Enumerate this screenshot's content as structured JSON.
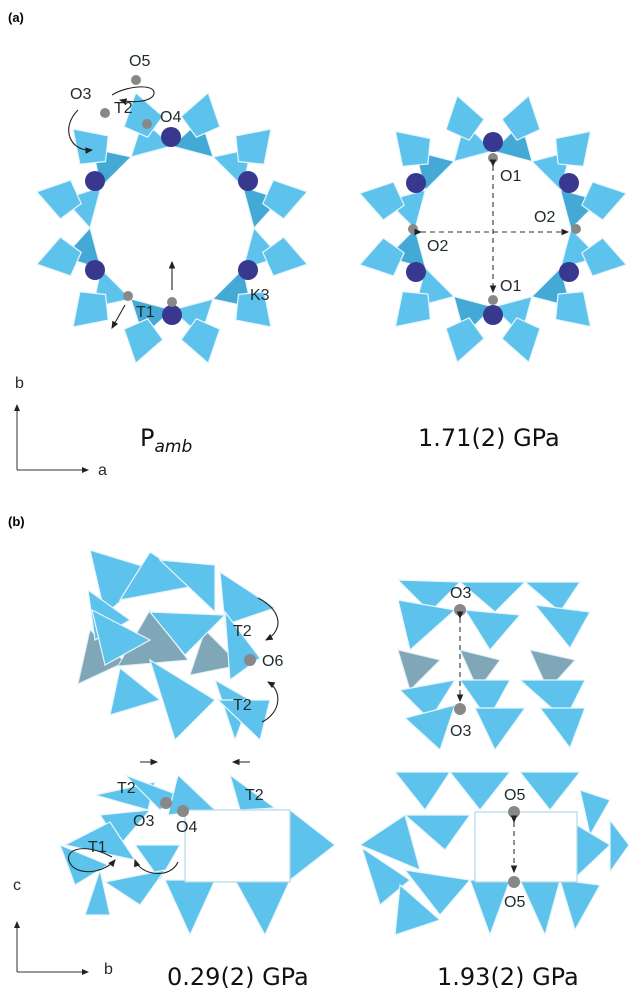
{
  "panels": {
    "a": {
      "label": "(a)",
      "left_caption_main": "P",
      "left_caption_sub": "amb",
      "right_caption": "1.71(2) GPa",
      "axes": {
        "vertical": "b",
        "horizontal": "a"
      },
      "left_atoms": [
        "O5",
        "O3",
        "T2",
        "O4",
        "T1",
        "K3"
      ],
      "right_atoms": [
        "O1",
        "O2",
        "O2",
        "O1"
      ]
    },
    "b": {
      "label": "(b)",
      "left_caption": "0.29(2) GPa",
      "right_caption": "1.93(2) GPa",
      "axes": {
        "vertical": "c",
        "horizontal": "b"
      },
      "top_left_atoms": [
        "T2",
        "O6",
        "T2"
      ],
      "top_right_atoms": [
        "O3",
        "O3"
      ],
      "bottom_left_atoms": [
        "T2",
        "T2",
        "O3",
        "O4",
        "T1"
      ],
      "bottom_right_atoms": [
        "O5",
        "O5"
      ]
    }
  },
  "colors": {
    "tetrahedron": "#5ec3ec",
    "tetrahedron_shade": "#7fa7b8",
    "potassium": "#38388f",
    "oxygen": "#888888"
  }
}
